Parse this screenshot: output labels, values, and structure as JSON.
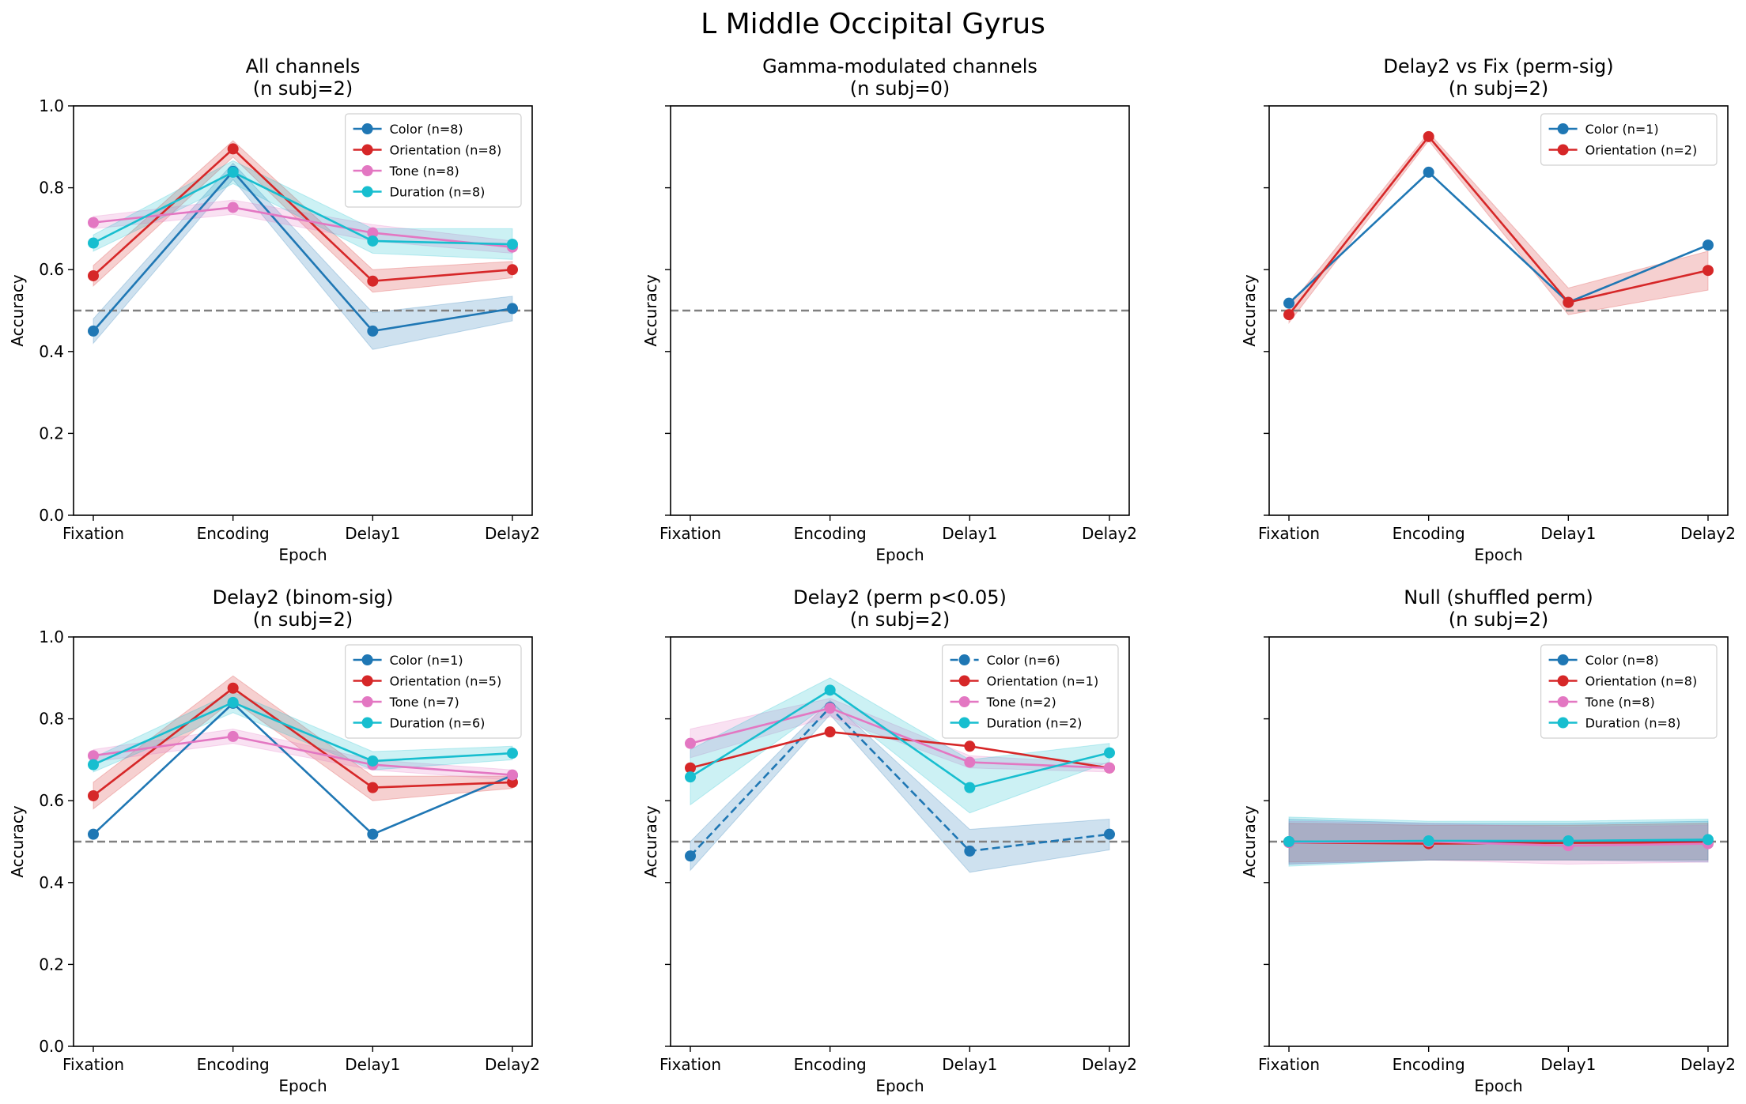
{
  "figure": {
    "title": "L Middle Occipital Gyrus"
  },
  "epochs": [
    "Fixation",
    "Encoding",
    "Delay1",
    "Delay2"
  ],
  "colors": {
    "Color": "#1f77b4",
    "Orientation": "#d62728",
    "Tone": "#e377c2",
    "Duration": "#17becf",
    "chance_line": "#808080"
  },
  "chart_data": [
    {
      "type": "line",
      "title": "All channels",
      "subtitle": "(n subj=2)",
      "xlabel": "Epoch",
      "ylabel": "Accuracy",
      "categories": [
        "Fixation",
        "Encoding",
        "Delay1",
        "Delay2"
      ],
      "ylim": [
        0,
        1
      ],
      "yticks": [
        "0.0",
        "0.2",
        "0.4",
        "0.6",
        "0.8",
        "1.0"
      ],
      "show_ytick_labels": true,
      "chance_level": 0.5,
      "legend_position": "top-right",
      "series": [
        {
          "name": "Color (n=8)",
          "color": "#1f77b4",
          "values": [
            0.45,
            0.84,
            0.45,
            0.505
          ],
          "lower": [
            0.42,
            0.82,
            0.405,
            0.475
          ],
          "upper": [
            0.48,
            0.86,
            0.495,
            0.535
          ]
        },
        {
          "name": "Orientation (n=8)",
          "color": "#d62728",
          "values": [
            0.585,
            0.895,
            0.572,
            0.6
          ],
          "lower": [
            0.56,
            0.875,
            0.545,
            0.58
          ],
          "upper": [
            0.61,
            0.915,
            0.6,
            0.62
          ]
        },
        {
          "name": "Tone (n=8)",
          "color": "#e377c2",
          "values": [
            0.715,
            0.752,
            0.69,
            0.655
          ],
          "lower": [
            0.7,
            0.735,
            0.67,
            0.64
          ],
          "upper": [
            0.73,
            0.77,
            0.71,
            0.67
          ]
        },
        {
          "name": "Duration (n=8)",
          "color": "#17becf",
          "values": [
            0.665,
            0.838,
            0.67,
            0.662
          ],
          "lower": [
            0.645,
            0.81,
            0.64,
            0.625
          ],
          "upper": [
            0.685,
            0.866,
            0.7,
            0.7
          ]
        }
      ]
    },
    {
      "type": "line",
      "title": "Gamma-modulated channels",
      "subtitle": "(n subj=0)",
      "xlabel": "Epoch",
      "ylabel": "Accuracy",
      "categories": [
        "Fixation",
        "Encoding",
        "Delay1",
        "Delay2"
      ],
      "ylim": [
        0,
        1
      ],
      "show_ytick_labels": false,
      "chance_level": 0.5,
      "series": []
    },
    {
      "type": "line",
      "title": "Delay2 vs Fix (perm-sig)",
      "subtitle": "(n subj=2)",
      "xlabel": "Epoch",
      "ylabel": "Accuracy",
      "categories": [
        "Fixation",
        "Encoding",
        "Delay1",
        "Delay2"
      ],
      "ylim": [
        0,
        1
      ],
      "show_ytick_labels": false,
      "chance_level": 0.5,
      "legend_position": "top-right",
      "series": [
        {
          "name": "Color (n=1)",
          "color": "#1f77b4",
          "values": [
            0.518,
            0.838,
            0.52,
            0.66
          ]
        },
        {
          "name": "Orientation (n=2)",
          "color": "#d62728",
          "values": [
            0.49,
            0.925,
            0.52,
            0.598
          ],
          "lower": [
            0.47,
            0.915,
            0.49,
            0.55
          ],
          "upper": [
            0.51,
            0.935,
            0.555,
            0.645
          ]
        }
      ]
    },
    {
      "type": "line",
      "title": "Delay2 (binom-sig)",
      "subtitle": "(n subj=2)",
      "xlabel": "Epoch",
      "ylabel": "Accuracy",
      "categories": [
        "Fixation",
        "Encoding",
        "Delay1",
        "Delay2"
      ],
      "ylim": [
        0,
        1
      ],
      "yticks": [
        "0.0",
        "0.2",
        "0.4",
        "0.6",
        "0.8",
        "1.0"
      ],
      "show_ytick_labels": true,
      "chance_level": 0.5,
      "legend_position": "top-right",
      "series": [
        {
          "name": "Color (n=1)",
          "color": "#1f77b4",
          "values": [
            0.518,
            0.838,
            0.518,
            0.662
          ]
        },
        {
          "name": "Orientation (n=5)",
          "color": "#d62728",
          "values": [
            0.612,
            0.875,
            0.632,
            0.645
          ],
          "lower": [
            0.58,
            0.845,
            0.6,
            0.63
          ],
          "upper": [
            0.645,
            0.905,
            0.66,
            0.66
          ]
        },
        {
          "name": "Tone (n=7)",
          "color": "#e377c2",
          "values": [
            0.71,
            0.757,
            0.688,
            0.663
          ],
          "lower": [
            0.695,
            0.74,
            0.675,
            0.65
          ],
          "upper": [
            0.725,
            0.775,
            0.7,
            0.675
          ]
        },
        {
          "name": "Duration (n=6)",
          "color": "#17becf",
          "values": [
            0.688,
            0.84,
            0.697,
            0.716
          ],
          "lower": [
            0.67,
            0.815,
            0.675,
            0.7
          ],
          "upper": [
            0.705,
            0.865,
            0.72,
            0.733
          ]
        }
      ]
    },
    {
      "type": "line",
      "title": "Delay2 (perm p<0.05)",
      "subtitle": "(n subj=2)",
      "xlabel": "Epoch",
      "ylabel": "Accuracy",
      "categories": [
        "Fixation",
        "Encoding",
        "Delay1",
        "Delay2"
      ],
      "ylim": [
        0,
        1
      ],
      "show_ytick_labels": false,
      "chance_level": 0.5,
      "legend_position": "top-right",
      "series": [
        {
          "name": "Color (n=6)",
          "color": "#1f77b4",
          "dashed": true,
          "values": [
            0.465,
            0.828,
            0.477,
            0.518
          ],
          "lower": [
            0.43,
            0.81,
            0.425,
            0.48
          ],
          "upper": [
            0.5,
            0.845,
            0.53,
            0.555
          ]
        },
        {
          "name": "Orientation (n=1)",
          "color": "#d62728",
          "values": [
            0.68,
            0.768,
            0.733,
            0.68
          ]
        },
        {
          "name": "Tone (n=2)",
          "color": "#e377c2",
          "values": [
            0.74,
            0.826,
            0.694,
            0.68
          ],
          "lower": [
            0.705,
            0.805,
            0.68,
            0.67
          ],
          "upper": [
            0.775,
            0.85,
            0.71,
            0.69
          ]
        },
        {
          "name": "Duration (n=2)",
          "color": "#17becf",
          "values": [
            0.658,
            0.87,
            0.632,
            0.717
          ],
          "lower": [
            0.59,
            0.84,
            0.57,
            0.695
          ],
          "upper": [
            0.725,
            0.9,
            0.7,
            0.74
          ]
        }
      ]
    },
    {
      "type": "line",
      "title": "Null (shuffled perm)",
      "subtitle": "(n subj=2)",
      "xlabel": "Epoch",
      "ylabel": "Accuracy",
      "categories": [
        "Fixation",
        "Encoding",
        "Delay1",
        "Delay2"
      ],
      "ylim": [
        0,
        1
      ],
      "show_ytick_labels": false,
      "chance_level": 0.5,
      "legend_position": "top-right",
      "series": [
        {
          "name": "Color (n=8)",
          "color": "#1f77b4",
          "values": [
            0.5,
            0.5,
            0.5,
            0.5
          ],
          "lower": [
            0.445,
            0.455,
            0.455,
            0.45
          ],
          "upper": [
            0.555,
            0.545,
            0.545,
            0.55
          ]
        },
        {
          "name": "Orientation (n=8)",
          "color": "#d62728",
          "values": [
            0.498,
            0.495,
            0.497,
            0.498
          ],
          "lower": [
            0.45,
            0.455,
            0.455,
            0.455
          ],
          "upper": [
            0.545,
            0.54,
            0.54,
            0.545
          ]
        },
        {
          "name": "Tone (n=8)",
          "color": "#e377c2",
          "values": [
            0.498,
            0.5,
            0.49,
            0.495
          ],
          "lower": [
            0.445,
            0.455,
            0.445,
            0.45
          ],
          "upper": [
            0.55,
            0.545,
            0.535,
            0.54
          ]
        },
        {
          "name": "Duration (n=8)",
          "color": "#17becf",
          "values": [
            0.5,
            0.502,
            0.502,
            0.505
          ],
          "lower": [
            0.44,
            0.455,
            0.455,
            0.455
          ],
          "upper": [
            0.56,
            0.55,
            0.55,
            0.555
          ]
        }
      ]
    }
  ]
}
